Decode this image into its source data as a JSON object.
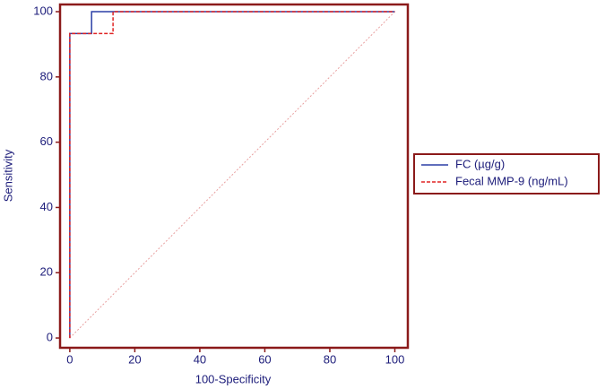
{
  "chart_data": {
    "type": "line",
    "x_label": "100-Specificity",
    "y_label": "Sensitivity",
    "xlim": [
      -3,
      104
    ],
    "ylim": [
      -3,
      102.2
    ],
    "xticks": [
      0,
      20,
      40,
      60,
      80,
      100
    ],
    "yticks": [
      0,
      20,
      40,
      60,
      80,
      100
    ],
    "diagonal": true,
    "legend": "right",
    "series": [
      {
        "name": "FC (µg/g)",
        "color": "#2b3fa6",
        "dash": false,
        "x": [
          0,
          0,
          6.7,
          6.7,
          100
        ],
        "values": [
          0,
          93.3,
          93.3,
          100,
          100
        ]
      },
      {
        "name": "Fecal MMP-9 (ng/mL)",
        "color": "#e02424",
        "dash": true,
        "x": [
          0,
          0,
          13.3,
          13.3,
          100
        ],
        "values": [
          0,
          93.3,
          93.3,
          100,
          100
        ]
      }
    ]
  }
}
